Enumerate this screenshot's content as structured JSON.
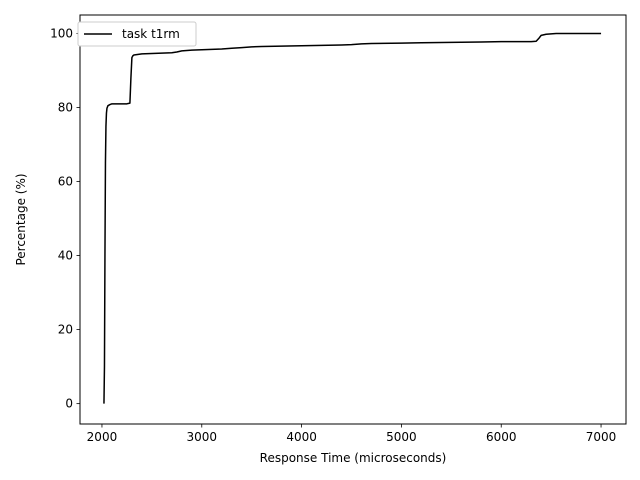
{
  "chart_data": {
    "type": "line",
    "title": "",
    "xlabel": "Response Time (microseconds)",
    "ylabel": "Percentage (%)",
    "xlim": [
      1780,
      7250
    ],
    "ylim": [
      -5.5,
      105
    ],
    "xticks": [
      2000,
      3000,
      4000,
      5000,
      6000,
      7000
    ],
    "xtick_labels": [
      "2000",
      "3000",
      "4000",
      "5000",
      "6000",
      "7000"
    ],
    "yticks": [
      0,
      20,
      40,
      60,
      80,
      100
    ],
    "ytick_labels": [
      "0",
      "20",
      "40",
      "60",
      "80",
      "100"
    ],
    "grid": false,
    "legend": {
      "location": "upper left",
      "entries": [
        "task t1rm"
      ]
    },
    "series": [
      {
        "name": "task t1rm",
        "color": "#000000",
        "x": [
          2020,
          2025,
          2030,
          2035,
          2040,
          2045,
          2050,
          2060,
          2080,
          2100,
          2150,
          2200,
          2250,
          2280,
          2290,
          2300,
          2310,
          2320,
          2400,
          2500,
          2600,
          2700,
          2750,
          2800,
          2900,
          3000,
          3200,
          3300,
          3400,
          3500,
          3600,
          3800,
          4000,
          4200,
          4400,
          4500,
          4600,
          4700,
          5000,
          5200,
          5500,
          5800,
          6000,
          6200,
          6300,
          6350,
          6380,
          6400,
          6450,
          6500,
          6550,
          6600,
          7000
        ],
        "y": [
          0,
          10,
          40,
          65,
          75,
          78.5,
          79.8,
          80.5,
          80.8,
          81,
          81,
          81,
          81,
          81.2,
          88,
          93.5,
          94,
          94.2,
          94.5,
          94.6,
          94.7,
          94.8,
          95.0,
          95.3,
          95.5,
          95.6,
          95.8,
          96.0,
          96.2,
          96.4,
          96.5,
          96.6,
          96.7,
          96.8,
          96.9,
          97.0,
          97.2,
          97.3,
          97.4,
          97.5,
          97.6,
          97.7,
          97.8,
          97.8,
          97.8,
          97.9,
          98.8,
          99.5,
          99.8,
          99.9,
          100,
          100,
          100
        ]
      }
    ]
  }
}
